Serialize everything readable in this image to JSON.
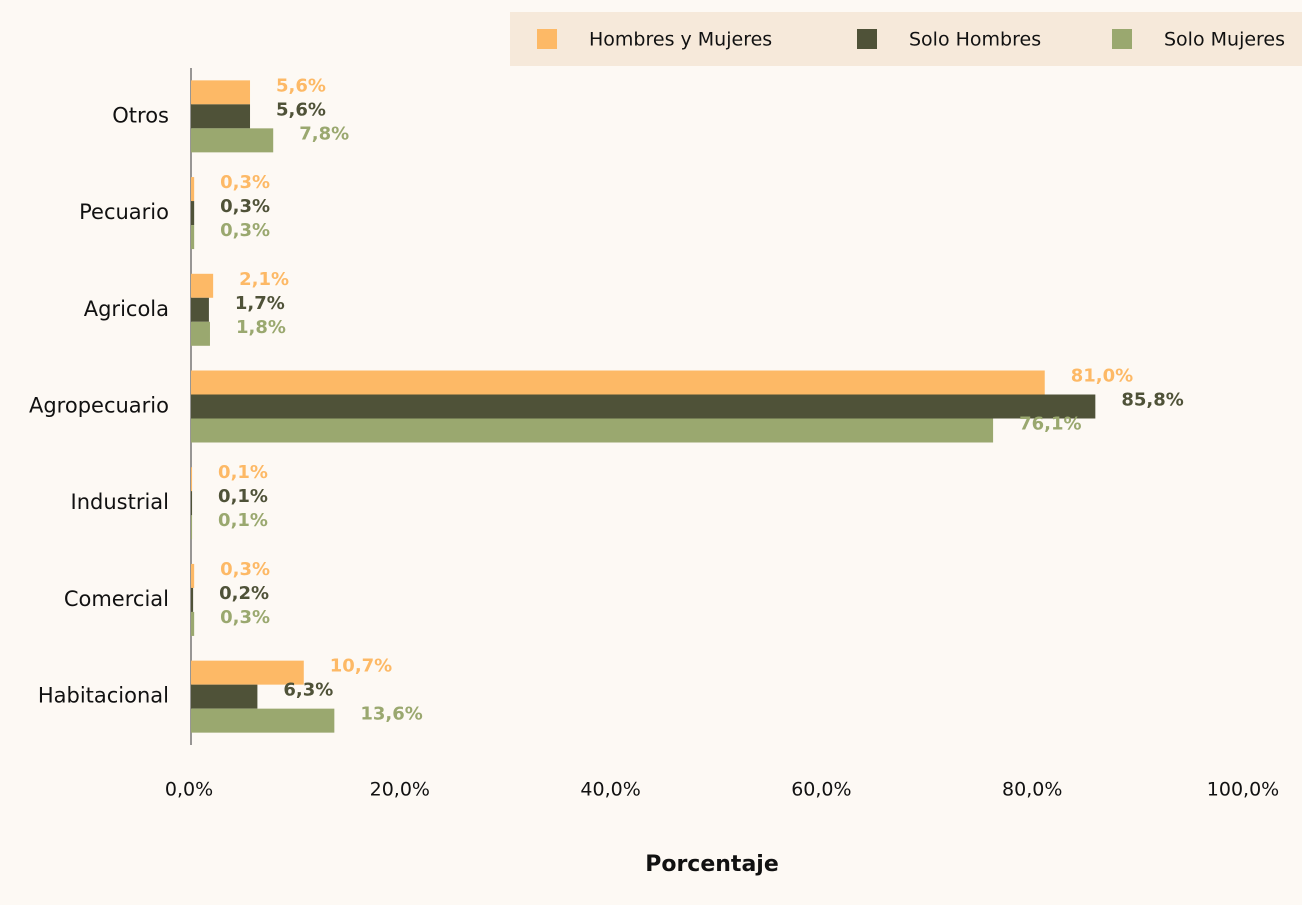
{
  "chart_data": {
    "type": "hbar",
    "x_label": "Porcentaje",
    "categories": [
      "Otros",
      "Pecuario",
      "Agricola",
      "Agropecuario",
      "Industrial",
      "Comercial",
      "Habitacional"
    ],
    "series": [
      {
        "name": "Hombres y Mujeres",
        "color": "#fdb966",
        "values": [
          5.6,
          0.3,
          2.1,
          81.0,
          0.1,
          0.3,
          10.7
        ],
        "value_labels": [
          "5,6%",
          "0,3%",
          "2,1%",
          "81,0%",
          "0,1%",
          "0,3%",
          "10,7%"
        ]
      },
      {
        "name": "Solo Hombres",
        "color": "#4f5238",
        "values": [
          5.6,
          0.3,
          1.7,
          85.8,
          0.1,
          0.2,
          6.3
        ],
        "value_labels": [
          "5,6%",
          "0,3%",
          "1,7%",
          "85,8%",
          "0,1%",
          "0,2%",
          "6,3%"
        ]
      },
      {
        "name": "Solo Mujeres",
        "color": "#9aa86f",
        "values": [
          7.8,
          0.3,
          1.8,
          76.1,
          0.1,
          0.3,
          13.6
        ],
        "value_labels": [
          "7,8%",
          "0,3%",
          "1,8%",
          "76,1%",
          "0,1%",
          "0,3%",
          "13,6%"
        ]
      }
    ],
    "xlim": [
      0,
      100
    ],
    "xticks": [
      {
        "value": 0,
        "label": "0,0%"
      },
      {
        "value": 20,
        "label": "20,0%"
      },
      {
        "value": 40,
        "label": "40,0%"
      },
      {
        "value": 60,
        "label": "60,0%"
      },
      {
        "value": 80,
        "label": "80,0%"
      },
      {
        "value": 100,
        "label": "100,0%"
      }
    ],
    "grid": false,
    "legend": "top-right"
  }
}
